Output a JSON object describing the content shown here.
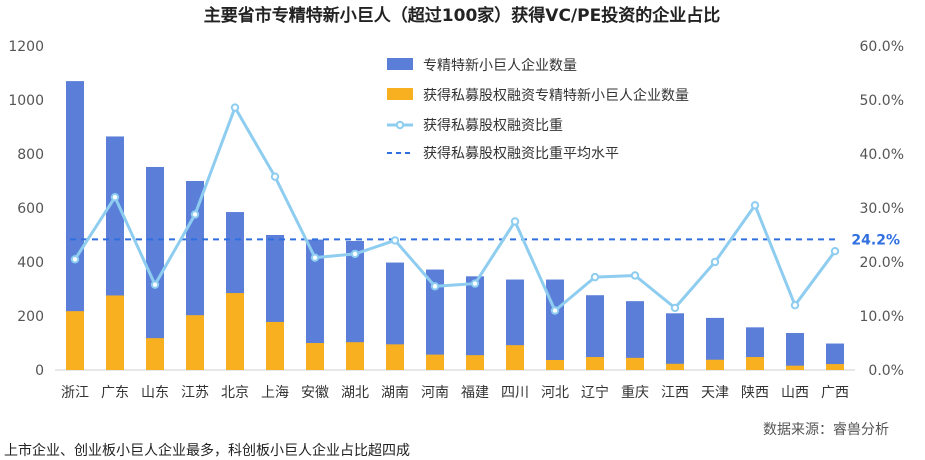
{
  "chart_data": {
    "type": "bar",
    "title": "主要省市专精特新小巨人（超过100家）获得VC/PE投资的企业占比",
    "categories": [
      "浙江",
      "广东",
      "山东",
      "江苏",
      "北京",
      "上海",
      "安徽",
      "湖北",
      "湖南",
      "河南",
      "福建",
      "四川",
      "河北",
      "辽宁",
      "重庆",
      "江西",
      "天津",
      "陕西",
      "山西",
      "广西"
    ],
    "series": [
      {
        "name": "专精特新小巨人企业数量",
        "color": "#5b7fd8",
        "axis": "left",
        "values": [
          1070,
          865,
          752,
          700,
          585,
          500,
          483,
          478,
          398,
          372,
          347,
          335,
          335,
          277,
          255,
          210,
          193,
          158,
          137,
          98
        ]
      },
      {
        "name": "获得私募股权融资专精特新小巨人企业数量",
        "color": "#f9b020",
        "axis": "left",
        "values": [
          218,
          276,
          118,
          203,
          285,
          178,
          100,
          103,
          95,
          57,
          55,
          92,
          37,
          48,
          45,
          23,
          38,
          48,
          16,
          22
        ]
      },
      {
        "name": "获得私募股权融资比重",
        "color": "#8ecdf0",
        "axis": "right",
        "type": "line",
        "values": [
          20.5,
          32.0,
          15.8,
          28.8,
          48.6,
          35.8,
          20.8,
          21.5,
          24.0,
          15.5,
          16.0,
          27.5,
          11.0,
          17.2,
          17.5,
          11.5,
          20.0,
          30.5,
          12.0,
          22.0
        ]
      },
      {
        "name": "获得私募股权融资比重平均水平",
        "color": "#2f6fe0",
        "axis": "right",
        "type": "dashed-line",
        "value": 24.2,
        "label": "24.2%"
      }
    ],
    "ylim": [
      0,
      1200
    ],
    "yticks": [
      "0",
      "200",
      "400",
      "600",
      "800",
      "1000",
      "1200"
    ],
    "y2lim": [
      0,
      60
    ],
    "y2ticks": [
      "0.0%",
      "10.0%",
      "20.0%",
      "30.0%",
      "40.0%",
      "50.0%",
      "60.0%"
    ],
    "legend_position": "top-right",
    "grid": false
  },
  "source_note": "数据来源：睿兽分析",
  "footer_text": "上市企业、创业板小巨人企业最多，科创板小巨人企业占比超四成"
}
